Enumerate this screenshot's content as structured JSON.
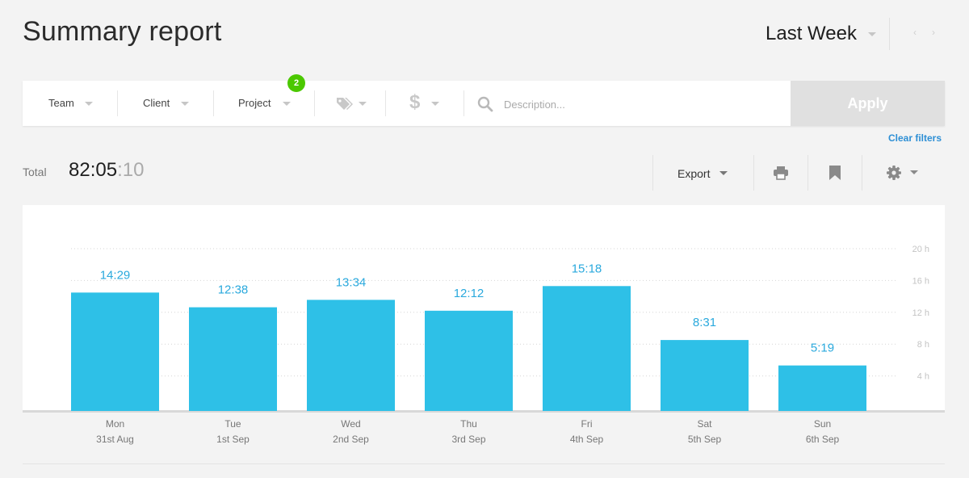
{
  "header": {
    "title": "Summary report",
    "period": "Last Week"
  },
  "filters": {
    "team": "Team",
    "client": "Client",
    "project": "Project",
    "project_badge": "2",
    "description_placeholder": "Description...",
    "apply": "Apply",
    "clear": "Clear filters"
  },
  "summary": {
    "total_label": "Total",
    "total_main": "82:05",
    "total_seconds": ":10"
  },
  "toolbar": {
    "export": "Export"
  },
  "icons": [
    "chevron-left-icon",
    "chevron-right-icon",
    "tag-icon",
    "dollar-icon",
    "search-icon",
    "print-icon",
    "bookmark-icon",
    "gear-icon"
  ],
  "colors": {
    "bar": "#2ec0e7",
    "bar_label": "#2aa9dd",
    "apply_bg": "#e0e0e0",
    "link": "#2d8fd5",
    "badge": "#4bc800"
  },
  "chart_data": {
    "type": "bar",
    "categories": [
      "Mon\n31st Aug",
      "Tue\n1st Sep",
      "Wed\n2nd Sep",
      "Thu\n3rd Sep",
      "Fri\n4th Sep",
      "Sat\n5th Sep",
      "Sun\n6th Sep"
    ],
    "days": [
      "Mon",
      "Tue",
      "Wed",
      "Thu",
      "Fri",
      "Sat",
      "Sun"
    ],
    "dates": [
      "31st Aug",
      "1st Sep",
      "2nd Sep",
      "3rd Sep",
      "4th Sep",
      "5th Sep",
      "6th Sep"
    ],
    "labels": [
      "14:29",
      "12:38",
      "13:34",
      "12:12",
      "15:18",
      "8:31",
      "5:19"
    ],
    "values": [
      14.483,
      12.633,
      13.567,
      12.2,
      15.3,
      8.517,
      5.317
    ],
    "ylim": [
      0,
      20
    ],
    "yticks": [
      4,
      8,
      12,
      16,
      20
    ],
    "ytick_labels": [
      "4 h",
      "8 h",
      "12 h",
      "16 h",
      "20 h"
    ],
    "grid": true,
    "title": "",
    "xlabel": "",
    "ylabel": ""
  }
}
